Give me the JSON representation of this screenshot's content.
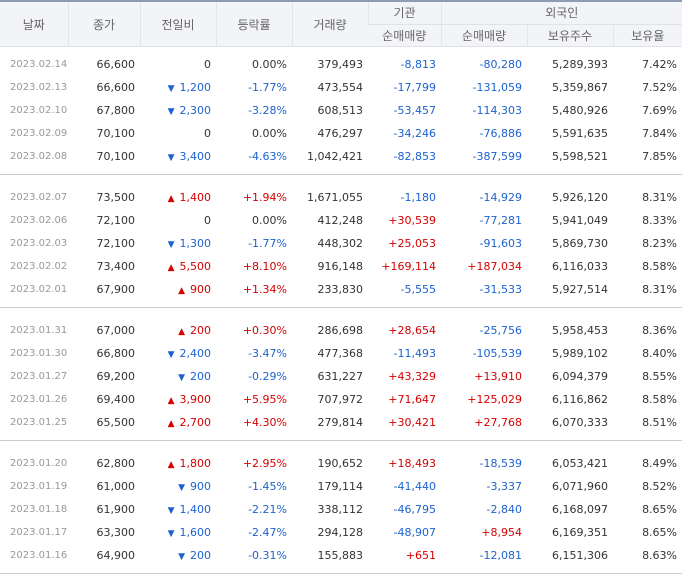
{
  "headers": {
    "date": "날짜",
    "close": "종가",
    "change": "전일비",
    "rate": "등락률",
    "volume": "거래량",
    "institution": "기관",
    "foreign": "외국인",
    "inst_net": "순매매량",
    "foreign_net": "순매매량",
    "holdings": "보유주수",
    "ratio": "보유율"
  },
  "colors": {
    "up": "#d60000",
    "down": "#1d62d0",
    "header_bg": "#f3f4f8"
  },
  "groups": [
    [
      {
        "date": "2023.02.14",
        "close": "66,600",
        "dir": "flat",
        "change": "0",
        "rate": "0.00%",
        "volume": "379,493",
        "inst": "-8,813",
        "foreign": "-80,280",
        "holdings": "5,289,393",
        "ratio": "7.42%"
      },
      {
        "date": "2023.02.13",
        "close": "66,600",
        "dir": "down",
        "change": "1,200",
        "rate": "-1.77%",
        "volume": "473,554",
        "inst": "-17,799",
        "foreign": "-131,059",
        "holdings": "5,359,867",
        "ratio": "7.52%"
      },
      {
        "date": "2023.02.10",
        "close": "67,800",
        "dir": "down",
        "change": "2,300",
        "rate": "-3.28%",
        "volume": "608,513",
        "inst": "-53,457",
        "foreign": "-114,303",
        "holdings": "5,480,926",
        "ratio": "7.69%"
      },
      {
        "date": "2023.02.09",
        "close": "70,100",
        "dir": "flat",
        "change": "0",
        "rate": "0.00%",
        "volume": "476,297",
        "inst": "-34,246",
        "foreign": "-76,886",
        "holdings": "5,591,635",
        "ratio": "7.84%"
      },
      {
        "date": "2023.02.08",
        "close": "70,100",
        "dir": "down",
        "change": "3,400",
        "rate": "-4.63%",
        "volume": "1,042,421",
        "inst": "-82,853",
        "foreign": "-387,599",
        "holdings": "5,598,521",
        "ratio": "7.85%"
      }
    ],
    [
      {
        "date": "2023.02.07",
        "close": "73,500",
        "dir": "up",
        "change": "1,400",
        "rate": "+1.94%",
        "volume": "1,671,055",
        "inst": "-1,180",
        "foreign": "-14,929",
        "holdings": "5,926,120",
        "ratio": "8.31%"
      },
      {
        "date": "2023.02.06",
        "close": "72,100",
        "dir": "flat",
        "change": "0",
        "rate": "0.00%",
        "volume": "412,248",
        "inst": "+30,539",
        "foreign": "-77,281",
        "holdings": "5,941,049",
        "ratio": "8.33%"
      },
      {
        "date": "2023.02.03",
        "close": "72,100",
        "dir": "down",
        "change": "1,300",
        "rate": "-1.77%",
        "volume": "448,302",
        "inst": "+25,053",
        "foreign": "-91,603",
        "holdings": "5,869,730",
        "ratio": "8.23%"
      },
      {
        "date": "2023.02.02",
        "close": "73,400",
        "dir": "up",
        "change": "5,500",
        "rate": "+8.10%",
        "volume": "916,148",
        "inst": "+169,114",
        "foreign": "+187,034",
        "holdings": "6,116,033",
        "ratio": "8.58%"
      },
      {
        "date": "2023.02.01",
        "close": "67,900",
        "dir": "up",
        "change": "900",
        "rate": "+1.34%",
        "volume": "233,830",
        "inst": "-5,555",
        "foreign": "-31,533",
        "holdings": "5,927,514",
        "ratio": "8.31%"
      }
    ],
    [
      {
        "date": "2023.01.31",
        "close": "67,000",
        "dir": "up",
        "change": "200",
        "rate": "+0.30%",
        "volume": "286,698",
        "inst": "+28,654",
        "foreign": "-25,756",
        "holdings": "5,958,453",
        "ratio": "8.36%"
      },
      {
        "date": "2023.01.30",
        "close": "66,800",
        "dir": "down",
        "change": "2,400",
        "rate": "-3.47%",
        "volume": "477,368",
        "inst": "-11,493",
        "foreign": "-105,539",
        "holdings": "5,989,102",
        "ratio": "8.40%"
      },
      {
        "date": "2023.01.27",
        "close": "69,200",
        "dir": "down",
        "change": "200",
        "rate": "-0.29%",
        "volume": "631,227",
        "inst": "+43,329",
        "foreign": "+13,910",
        "holdings": "6,094,379",
        "ratio": "8.55%"
      },
      {
        "date": "2023.01.26",
        "close": "69,400",
        "dir": "up",
        "change": "3,900",
        "rate": "+5.95%",
        "volume": "707,972",
        "inst": "+71,647",
        "foreign": "+125,029",
        "holdings": "6,116,862",
        "ratio": "8.58%"
      },
      {
        "date": "2023.01.25",
        "close": "65,500",
        "dir": "up",
        "change": "2,700",
        "rate": "+4.30%",
        "volume": "279,814",
        "inst": "+30,421",
        "foreign": "+27,768",
        "holdings": "6,070,333",
        "ratio": "8.51%"
      }
    ],
    [
      {
        "date": "2023.01.20",
        "close": "62,800",
        "dir": "up",
        "change": "1,800",
        "rate": "+2.95%",
        "volume": "190,652",
        "inst": "+18,493",
        "foreign": "-18,539",
        "holdings": "6,053,421",
        "ratio": "8.49%"
      },
      {
        "date": "2023.01.19",
        "close": "61,000",
        "dir": "down",
        "change": "900",
        "rate": "-1.45%",
        "volume": "179,114",
        "inst": "-41,440",
        "foreign": "-3,337",
        "holdings": "6,071,960",
        "ratio": "8.52%"
      },
      {
        "date": "2023.01.18",
        "close": "61,900",
        "dir": "down",
        "change": "1,400",
        "rate": "-2.21%",
        "volume": "338,112",
        "inst": "-46,795",
        "foreign": "-2,840",
        "holdings": "6,168,097",
        "ratio": "8.65%"
      },
      {
        "date": "2023.01.17",
        "close": "63,300",
        "dir": "down",
        "change": "1,600",
        "rate": "-2.47%",
        "volume": "294,128",
        "inst": "-48,907",
        "foreign": "+8,954",
        "holdings": "6,169,351",
        "ratio": "8.65%"
      },
      {
        "date": "2023.01.16",
        "close": "64,900",
        "dir": "down",
        "change": "200",
        "rate": "-0.31%",
        "volume": "155,883",
        "inst": "+651",
        "foreign": "-12,081",
        "holdings": "6,151,306",
        "ratio": "8.63%"
      }
    ]
  ]
}
